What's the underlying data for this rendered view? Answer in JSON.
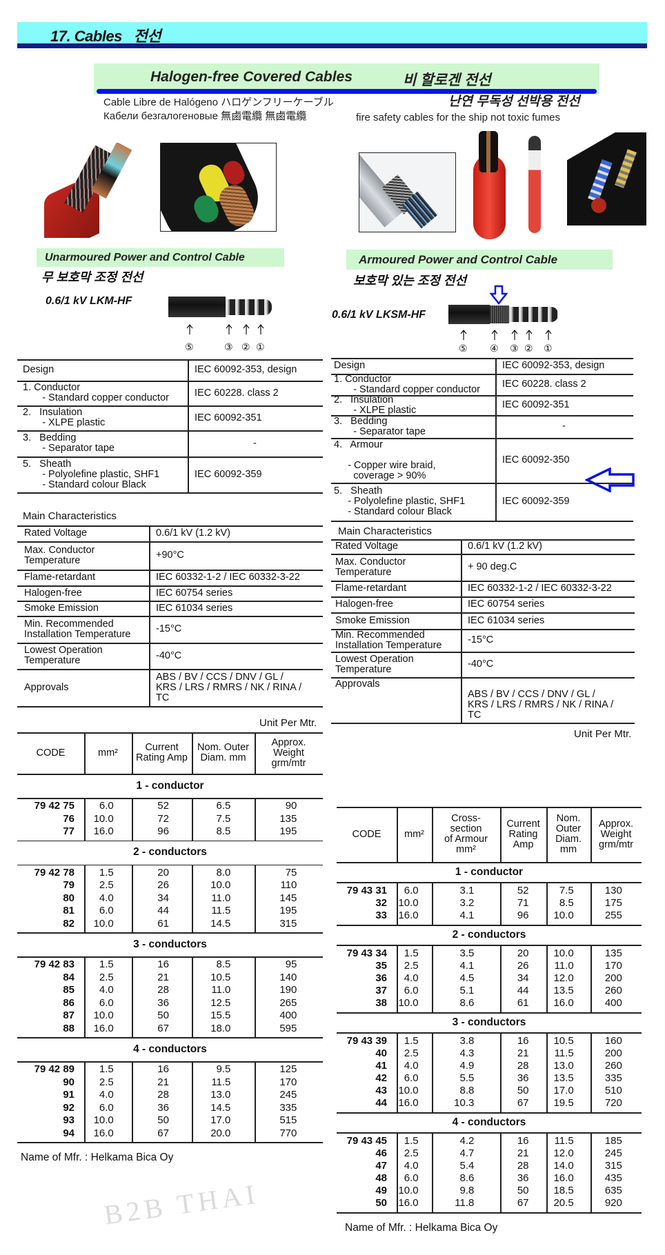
{
  "header": {
    "title": "17. Cables   전선"
  },
  "banner": {
    "title": "Halogen-free Covered Cables",
    "title_ko": "비 할로겐 전선",
    "sub_es_jp": "Cable Libre de Halógeno ハロゲンフリーケーブル",
    "sub_ru_cn": "Кабели безгалогеновые 無鹵電纜  無鹵電纜",
    "sub_ko": "난연 무독성 선박용 전선",
    "sub_en": "fire safety  cables for the ship   not toxic fumes"
  },
  "colors": {
    "title_bg": "#86fbfb",
    "title_rule": "#0d1f86",
    "green": "#cff7cf",
    "accent_blue": "#0a14e6"
  },
  "watermark": "B2B THAI",
  "left": {
    "section": "Unarmoured Power and Control Cable",
    "section_ko": "무 보호막 조정 전선",
    "model": "0.6/1 kV  LKM-HF",
    "markers": [
      "⑤",
      "③",
      "②",
      "①"
    ],
    "design": [
      [
        "Design",
        "IEC 60092-353, design"
      ],
      [
        "1. Conductor\n       - Standard copper conductor",
        "IEC 60228. class 2"
      ],
      [
        "2.   Insulation\n       - XLPE plastic",
        "IEC 60092-351"
      ],
      [
        "3.   Bedding\n       - Separator tape",
        "-"
      ],
      [
        "5.   Sheath\n       - Polyolefine plastic, SHF1\n       - Standard colour Black",
        "IEC 60092-359"
      ]
    ],
    "main_label": "Main Characteristics",
    "main": [
      [
        "Rated Voltage",
        "0.6/1 kV (1.2 kV)"
      ],
      [
        "Max. Conductor\nTemperature",
        "+90°C"
      ],
      [
        "Flame-retardant",
        "IEC 60332-1-2 / IEC 60332-3-22"
      ],
      [
        "Halogen-free",
        "IEC 60754 series"
      ],
      [
        "Smoke Emission",
        "IEC 61034 series"
      ],
      [
        "Min. Recommended\nInstallation Temperature",
        "-15°C"
      ],
      [
        "Lowest Operation\nTemperature",
        "-40°C"
      ],
      [
        "Approvals",
        "ABS / BV / CCS / DNV / GL /\nKRS / LRS / RMRS / NK / RINA /\nTC"
      ]
    ],
    "unit": "Unit Per Mtr.",
    "columns": [
      "CODE",
      "mm²",
      "Current\nRating Amp",
      "Nom. Outer\nDiam. mm",
      "Approx.\nWeight\ngrm/mtr"
    ],
    "groups": [
      {
        "title": "1 - conductor",
        "rows": [
          [
            "79 42 75",
            "6.0",
            "52",
            "6.5",
            "90"
          ],
          [
            "76",
            "10.0",
            "72",
            "7.5",
            "135"
          ],
          [
            "77",
            "16.0",
            "96",
            "8.5",
            "195"
          ]
        ]
      },
      {
        "title": "2 - conductors",
        "rows": [
          [
            "79 42 78",
            "1.5",
            "20",
            "8.0",
            "75"
          ],
          [
            "79",
            "2.5",
            "26",
            "10.0",
            "110"
          ],
          [
            "80",
            "4.0",
            "34",
            "11.0",
            "145"
          ],
          [
            "81",
            "6.0",
            "44",
            "11.5",
            "195"
          ],
          [
            "82",
            "10.0",
            "61",
            "14.5",
            "315"
          ]
        ]
      },
      {
        "title": "3 - conductors",
        "rows": [
          [
            "79 42 83",
            "1.5",
            "16",
            "8.5",
            "95"
          ],
          [
            "84",
            "2.5",
            "21",
            "10.5",
            "140"
          ],
          [
            "85",
            "4.0",
            "28",
            "11.0",
            "190"
          ],
          [
            "86",
            "6.0",
            "36",
            "12.5",
            "265"
          ],
          [
            "87",
            "10.0",
            "50",
            "15.5",
            "400"
          ],
          [
            "88",
            "16.0",
            "67",
            "18.0",
            "595"
          ]
        ]
      },
      {
        "title": "4 - conductors",
        "rows": [
          [
            "79 42 89",
            "1.5",
            "16",
            "9.5",
            "125"
          ],
          [
            "90",
            "2.5",
            "21",
            "11.5",
            "170"
          ],
          [
            "91",
            "4.0",
            "28",
            "13.0",
            "245"
          ],
          [
            "92",
            "6.0",
            "36",
            "14.5",
            "335"
          ],
          [
            "93",
            "10.0",
            "50",
            "17.0",
            "515"
          ],
          [
            "94",
            "16.0",
            "67",
            "20.0",
            "770"
          ]
        ]
      }
    ],
    "mfr": "Name of Mfr. : Helkama Bica Oy"
  },
  "right": {
    "section": "Armoured Power and Control Cable",
    "section_ko": "보호막 있는 조정 전선",
    "model": "0.6/1 kV  LKSM-HF",
    "markers": [
      "⑤",
      "④",
      "③",
      "②",
      "①"
    ],
    "design": [
      [
        "Design",
        "IEC 60092-353, design"
      ],
      [
        "1. Conductor\n       - Standard copper conductor",
        "IEC 60228. class 2"
      ],
      [
        "2.   Insulation\n       - XLPE plastic",
        "IEC 60092-351"
      ],
      [
        "3.   Bedding\n       - Separator tape",
        "-"
      ],
      [
        "4.   Armour\n\n     - Copper wire braid,\n       coverage > 90%",
        "IEC 60092-350"
      ],
      [
        "5.   Sheath\n     - Polyolefine plastic, SHF1\n     - Standard colour Black",
        "IEC 60092-359"
      ]
    ],
    "main_label": "Main Characteristics",
    "main": [
      [
        "Rated Voltage",
        "0.6/1 kV (1.2 kV)"
      ],
      [
        "Max. Conductor\nTemperature",
        "+ 90 deg.C"
      ],
      [
        "Flame-retardant",
        "IEC 60332-1-2 / IEC 60332-3-22"
      ],
      [
        "Halogen-free",
        "IEC 60754 series"
      ],
      [
        "Smoke Emission",
        "IEC 61034 series"
      ],
      [
        "Min. Recommended\nInstallation Temperature",
        "-15°C"
      ],
      [
        "Lowest Operation\nTemperature",
        "-40°C"
      ],
      [
        "Approvals",
        "\nABS / BV / CCS / DNV / GL /\nKRS / LRS / RMRS / NK / RINA /\nTC"
      ]
    ],
    "unit": "Unit Per Mtr.",
    "columns": [
      "CODE",
      "mm²",
      "Cross-\nsection\nof Armour\nmm²",
      "Current\nRating\nAmp",
      "Nom.\nOuter\nDiam.\nmm",
      "Approx.\nWeight\ngrm/mtr"
    ],
    "groups": [
      {
        "title": "1 - conductor",
        "rows": [
          [
            "79 43 31",
            "6.0",
            "3.1",
            "52",
            "7.5",
            "130"
          ],
          [
            "32",
            "10.0",
            "3.2",
            "71",
            "8.5",
            "175"
          ],
          [
            "33",
            "16.0",
            "4.1",
            "96",
            "10.0",
            "255"
          ]
        ]
      },
      {
        "title": "2 - conductors",
        "rows": [
          [
            "79 43 34",
            "1.5",
            "3.5",
            "20",
            "10.0",
            "135"
          ],
          [
            "35",
            "2.5",
            "4.1",
            "26",
            "11.0",
            "170"
          ],
          [
            "36",
            "4.0",
            "4.5",
            "34",
            "12.0",
            "200"
          ],
          [
            "37",
            "6.0",
            "5.1",
            "44",
            "13.5",
            "260"
          ],
          [
            "38",
            "10.0",
            "8.6",
            "61",
            "16.0",
            "400"
          ]
        ]
      },
      {
        "title": "3 - conductors",
        "rows": [
          [
            "79 43 39",
            "1.5",
            "3.8",
            "16",
            "10.5",
            "160"
          ],
          [
            "40",
            "2.5",
            "4.3",
            "21",
            "11.5",
            "200"
          ],
          [
            "41",
            "4.0",
            "4.9",
            "28",
            "13.0",
            "260"
          ],
          [
            "42",
            "6.0",
            "5.5",
            "36",
            "13.5",
            "335"
          ],
          [
            "43",
            "10.0",
            "8.8",
            "50",
            "17.0",
            "510"
          ],
          [
            "44",
            "16.0",
            "10.3",
            "67",
            "19.5",
            "720"
          ]
        ]
      },
      {
        "title": "4 - conductors",
        "rows": [
          [
            "79 43 45",
            "1.5",
            "4.2",
            "16",
            "11.5",
            "185"
          ],
          [
            "46",
            "2.5",
            "4.7",
            "21",
            "12.0",
            "245"
          ],
          [
            "47",
            "4.0",
            "5.4",
            "28",
            "14.0",
            "315"
          ],
          [
            "48",
            "6.0",
            "8.6",
            "36",
            "16.0",
            "435"
          ],
          [
            "49",
            "10.0",
            "9.8",
            "50",
            "18.5",
            "635"
          ],
          [
            "50",
            "16.0",
            "11.8",
            "67",
            "20.5",
            "920"
          ]
        ]
      }
    ],
    "mfr": "Name of Mfr. : Helkama Bica Oy"
  }
}
